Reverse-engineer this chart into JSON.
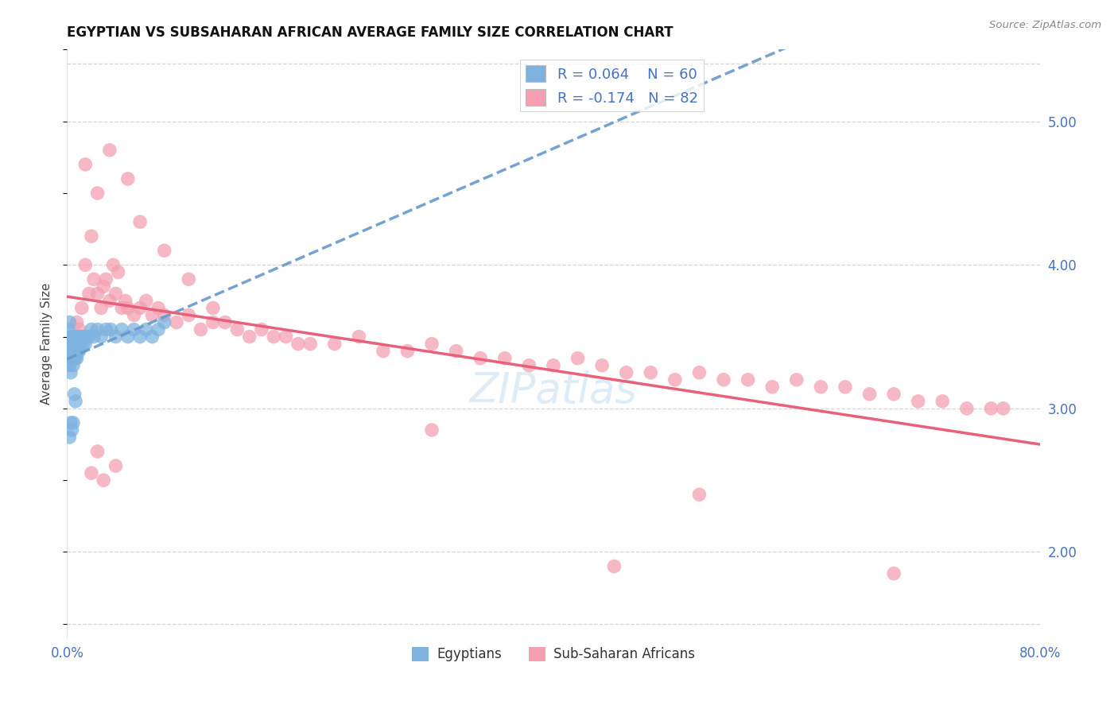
{
  "title": "EGYPTIAN VS SUBSAHARAN AFRICAN AVERAGE FAMILY SIZE CORRELATION CHART",
  "source": "Source: ZipAtlas.com",
  "ylabel": "Average Family Size",
  "color_blue": "#7EB3E0",
  "color_blue_line": "#6699CC",
  "color_pink": "#F4A0B0",
  "color_pink_line": "#E8607A",
  "color_text_blue": "#4472C4",
  "grid_color": "#CCCCCC",
  "background_color": "#FFFFFF",
  "label_egyptians": "Egyptians",
  "label_subsaharan": "Sub-Saharan Africans",
  "legend_r1": "R = 0.064",
  "legend_n1": "N = 60",
  "legend_r2": "R = -0.174",
  "legend_n2": "N = 82",
  "xlim": [
    0.0,
    0.8
  ],
  "ylim": [
    1.4,
    5.5
  ],
  "egyptians_x": [
    0.001,
    0.001,
    0.002,
    0.002,
    0.002,
    0.003,
    0.003,
    0.003,
    0.003,
    0.004,
    0.004,
    0.004,
    0.004,
    0.005,
    0.005,
    0.005,
    0.005,
    0.005,
    0.006,
    0.006,
    0.006,
    0.006,
    0.007,
    0.007,
    0.007,
    0.008,
    0.008,
    0.008,
    0.009,
    0.009,
    0.01,
    0.01,
    0.011,
    0.012,
    0.013,
    0.014,
    0.015,
    0.016,
    0.018,
    0.02,
    0.022,
    0.025,
    0.028,
    0.032,
    0.036,
    0.04,
    0.045,
    0.05,
    0.055,
    0.06,
    0.065,
    0.07,
    0.075,
    0.08,
    0.002,
    0.003,
    0.004,
    0.005,
    0.006,
    0.007
  ],
  "egyptians_y": [
    3.35,
    3.55,
    3.4,
    3.3,
    3.6,
    3.45,
    3.5,
    3.35,
    3.25,
    3.45,
    3.5,
    3.35,
    3.4,
    3.45,
    3.35,
    3.5,
    3.4,
    3.3,
    3.4,
    3.45,
    3.35,
    3.5,
    3.4,
    3.45,
    3.35,
    3.4,
    3.5,
    3.35,
    3.45,
    3.4,
    3.4,
    3.5,
    3.45,
    3.5,
    3.45,
    3.5,
    3.45,
    3.5,
    3.5,
    3.55,
    3.5,
    3.55,
    3.5,
    3.55,
    3.55,
    3.5,
    3.55,
    3.5,
    3.55,
    3.5,
    3.55,
    3.5,
    3.55,
    3.6,
    2.8,
    2.9,
    2.85,
    2.9,
    3.1,
    3.05
  ],
  "subsaharan_x": [
    0.005,
    0.008,
    0.01,
    0.012,
    0.015,
    0.018,
    0.02,
    0.022,
    0.025,
    0.028,
    0.03,
    0.032,
    0.035,
    0.038,
    0.04,
    0.042,
    0.045,
    0.048,
    0.05,
    0.055,
    0.06,
    0.065,
    0.07,
    0.075,
    0.08,
    0.09,
    0.1,
    0.11,
    0.12,
    0.13,
    0.14,
    0.15,
    0.16,
    0.17,
    0.18,
    0.19,
    0.2,
    0.22,
    0.24,
    0.26,
    0.28,
    0.3,
    0.32,
    0.34,
    0.36,
    0.38,
    0.4,
    0.42,
    0.44,
    0.46,
    0.48,
    0.5,
    0.52,
    0.54,
    0.56,
    0.58,
    0.6,
    0.62,
    0.64,
    0.66,
    0.68,
    0.7,
    0.72,
    0.74,
    0.76,
    0.77,
    0.015,
    0.025,
    0.035,
    0.05,
    0.06,
    0.08,
    0.1,
    0.12,
    0.04,
    0.03,
    0.025,
    0.02,
    0.3,
    0.45,
    0.52,
    0.68
  ],
  "subsaharan_y": [
    3.5,
    3.6,
    3.55,
    3.7,
    4.0,
    3.8,
    4.2,
    3.9,
    3.8,
    3.7,
    3.85,
    3.9,
    3.75,
    4.0,
    3.8,
    3.95,
    3.7,
    3.75,
    3.7,
    3.65,
    3.7,
    3.75,
    3.65,
    3.7,
    3.65,
    3.6,
    3.65,
    3.55,
    3.6,
    3.6,
    3.55,
    3.5,
    3.55,
    3.5,
    3.5,
    3.45,
    3.45,
    3.45,
    3.5,
    3.4,
    3.4,
    3.45,
    3.4,
    3.35,
    3.35,
    3.3,
    3.3,
    3.35,
    3.3,
    3.25,
    3.25,
    3.2,
    3.25,
    3.2,
    3.2,
    3.15,
    3.2,
    3.15,
    3.15,
    3.1,
    3.1,
    3.05,
    3.05,
    3.0,
    3.0,
    3.0,
    4.7,
    4.5,
    4.8,
    4.6,
    4.3,
    4.1,
    3.9,
    3.7,
    2.6,
    2.5,
    2.7,
    2.55,
    2.85,
    1.9,
    2.4,
    1.85
  ]
}
